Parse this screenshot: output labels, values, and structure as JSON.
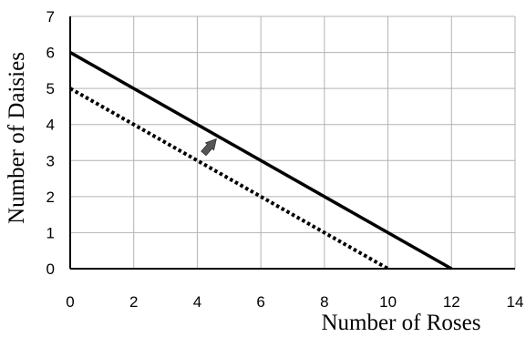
{
  "chart_data": {
    "type": "line",
    "title": "",
    "xlabel": "Number of Roses",
    "ylabel": "Number of Daisies",
    "xlim": [
      0,
      14
    ],
    "ylim": [
      0,
      7
    ],
    "xticks": [
      "0",
      "2",
      "4",
      "6",
      "8",
      "10",
      "12",
      "14"
    ],
    "yticks": [
      "0",
      "1",
      "2",
      "3",
      "4",
      "5",
      "6",
      "7"
    ],
    "grid": true,
    "legend": "none",
    "series": [
      {
        "style": "solid",
        "color": "#000000",
        "x": [
          0,
          12
        ],
        "y": [
          6,
          0
        ]
      },
      {
        "style": "dotted",
        "color": "#000000",
        "x": [
          0,
          10
        ],
        "y": [
          5,
          0
        ]
      }
    ],
    "annotations": [
      {
        "type": "arrow",
        "icon": "shift-up-right-arrow-icon",
        "color": "#555555",
        "direction": "up-right",
        "from": [
          4.2,
          3.2
        ],
        "to": [
          4.6,
          3.6
        ]
      }
    ]
  }
}
